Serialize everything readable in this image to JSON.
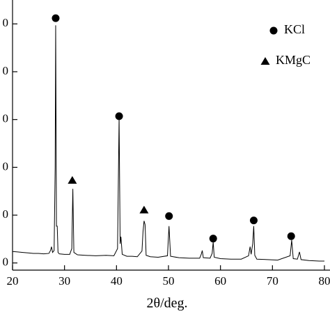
{
  "chart_data": {
    "type": "line",
    "x_label": "2θ/deg.",
    "xlim": [
      20,
      80
    ],
    "xticks": [
      20,
      30,
      40,
      50,
      60,
      70,
      80
    ],
    "ylim": [
      -1.5,
      55
    ],
    "yticks": [
      {
        "value": 0,
        "label": "0"
      },
      {
        "value": 10,
        "label": "0"
      },
      {
        "value": 20,
        "label": "0"
      },
      {
        "value": 30,
        "label": "0"
      },
      {
        "value": 40,
        "label": "0"
      },
      {
        "value": 50,
        "label": "0"
      }
    ],
    "x": [
      20,
      21,
      22,
      23,
      24,
      25,
      26,
      27,
      27.3,
      27.5,
      27.7,
      28.0,
      28.2,
      28.3,
      28.45,
      28.6,
      28.75,
      29,
      30,
      31,
      31.4,
      31.6,
      31.8,
      32.5,
      34,
      36,
      38,
      39.5,
      40.2,
      40.5,
      40.7,
      40.85,
      41.1,
      42,
      43,
      44,
      44.9,
      45.1,
      45.3,
      45.5,
      45.7,
      46.5,
      48,
      49.8,
      50.1,
      50.4,
      52,
      54,
      56,
      56.3,
      56.5,
      56.7,
      58,
      58.4,
      58.6,
      58.8,
      60,
      62,
      64,
      65.4,
      65.7,
      65.9,
      66.2,
      66.4,
      66.6,
      67,
      69,
      71,
      73.4,
      73.7,
      74,
      74.8,
      75.2,
      75.5,
      77,
      79,
      80
    ],
    "values": [
      2.4,
      2.3,
      2.2,
      2.1,
      2.0,
      2.0,
      1.9,
      2.0,
      2.6,
      3.4,
      2.2,
      2.6,
      20,
      49.7,
      7.7,
      7.7,
      2.2,
      1.9,
      1.8,
      1.8,
      3,
      15.5,
      2.2,
      1.7,
      1.6,
      1.5,
      1.6,
      1.5,
      3,
      30.4,
      4,
      5.5,
      1.8,
      1.4,
      1.4,
      1.3,
      2.5,
      6.5,
      8.8,
      8,
      1.6,
      1.3,
      1.2,
      1.5,
      7.7,
      1.4,
      1.1,
      1.0,
      1.0,
      1.8,
      2.6,
      1.1,
      1.0,
      2,
      4.4,
      1.2,
      0.9,
      0.8,
      0.8,
      1.5,
      3.4,
      1.8,
      4,
      7.7,
      1.6,
      0.8,
      0.7,
      0.6,
      1.5,
      4.8,
      0.9,
      0.8,
      2.3,
      0.7,
      0.5,
      0.4,
      0.4
    ],
    "color": "#000000",
    "markers": [
      {
        "name": "KCl",
        "shape": "circle",
        "x": [
          28.3,
          40.5,
          50.1,
          58.6,
          66.4,
          73.6
        ],
        "values": [
          51.2,
          30.7,
          9.8,
          5.1,
          8.9,
          5.6
        ]
      },
      {
        "name": "KMgC",
        "shape": "triangle",
        "x": [
          31.5,
          45.3
        ],
        "values": [
          17.3,
          11.1
        ]
      }
    ]
  }
}
